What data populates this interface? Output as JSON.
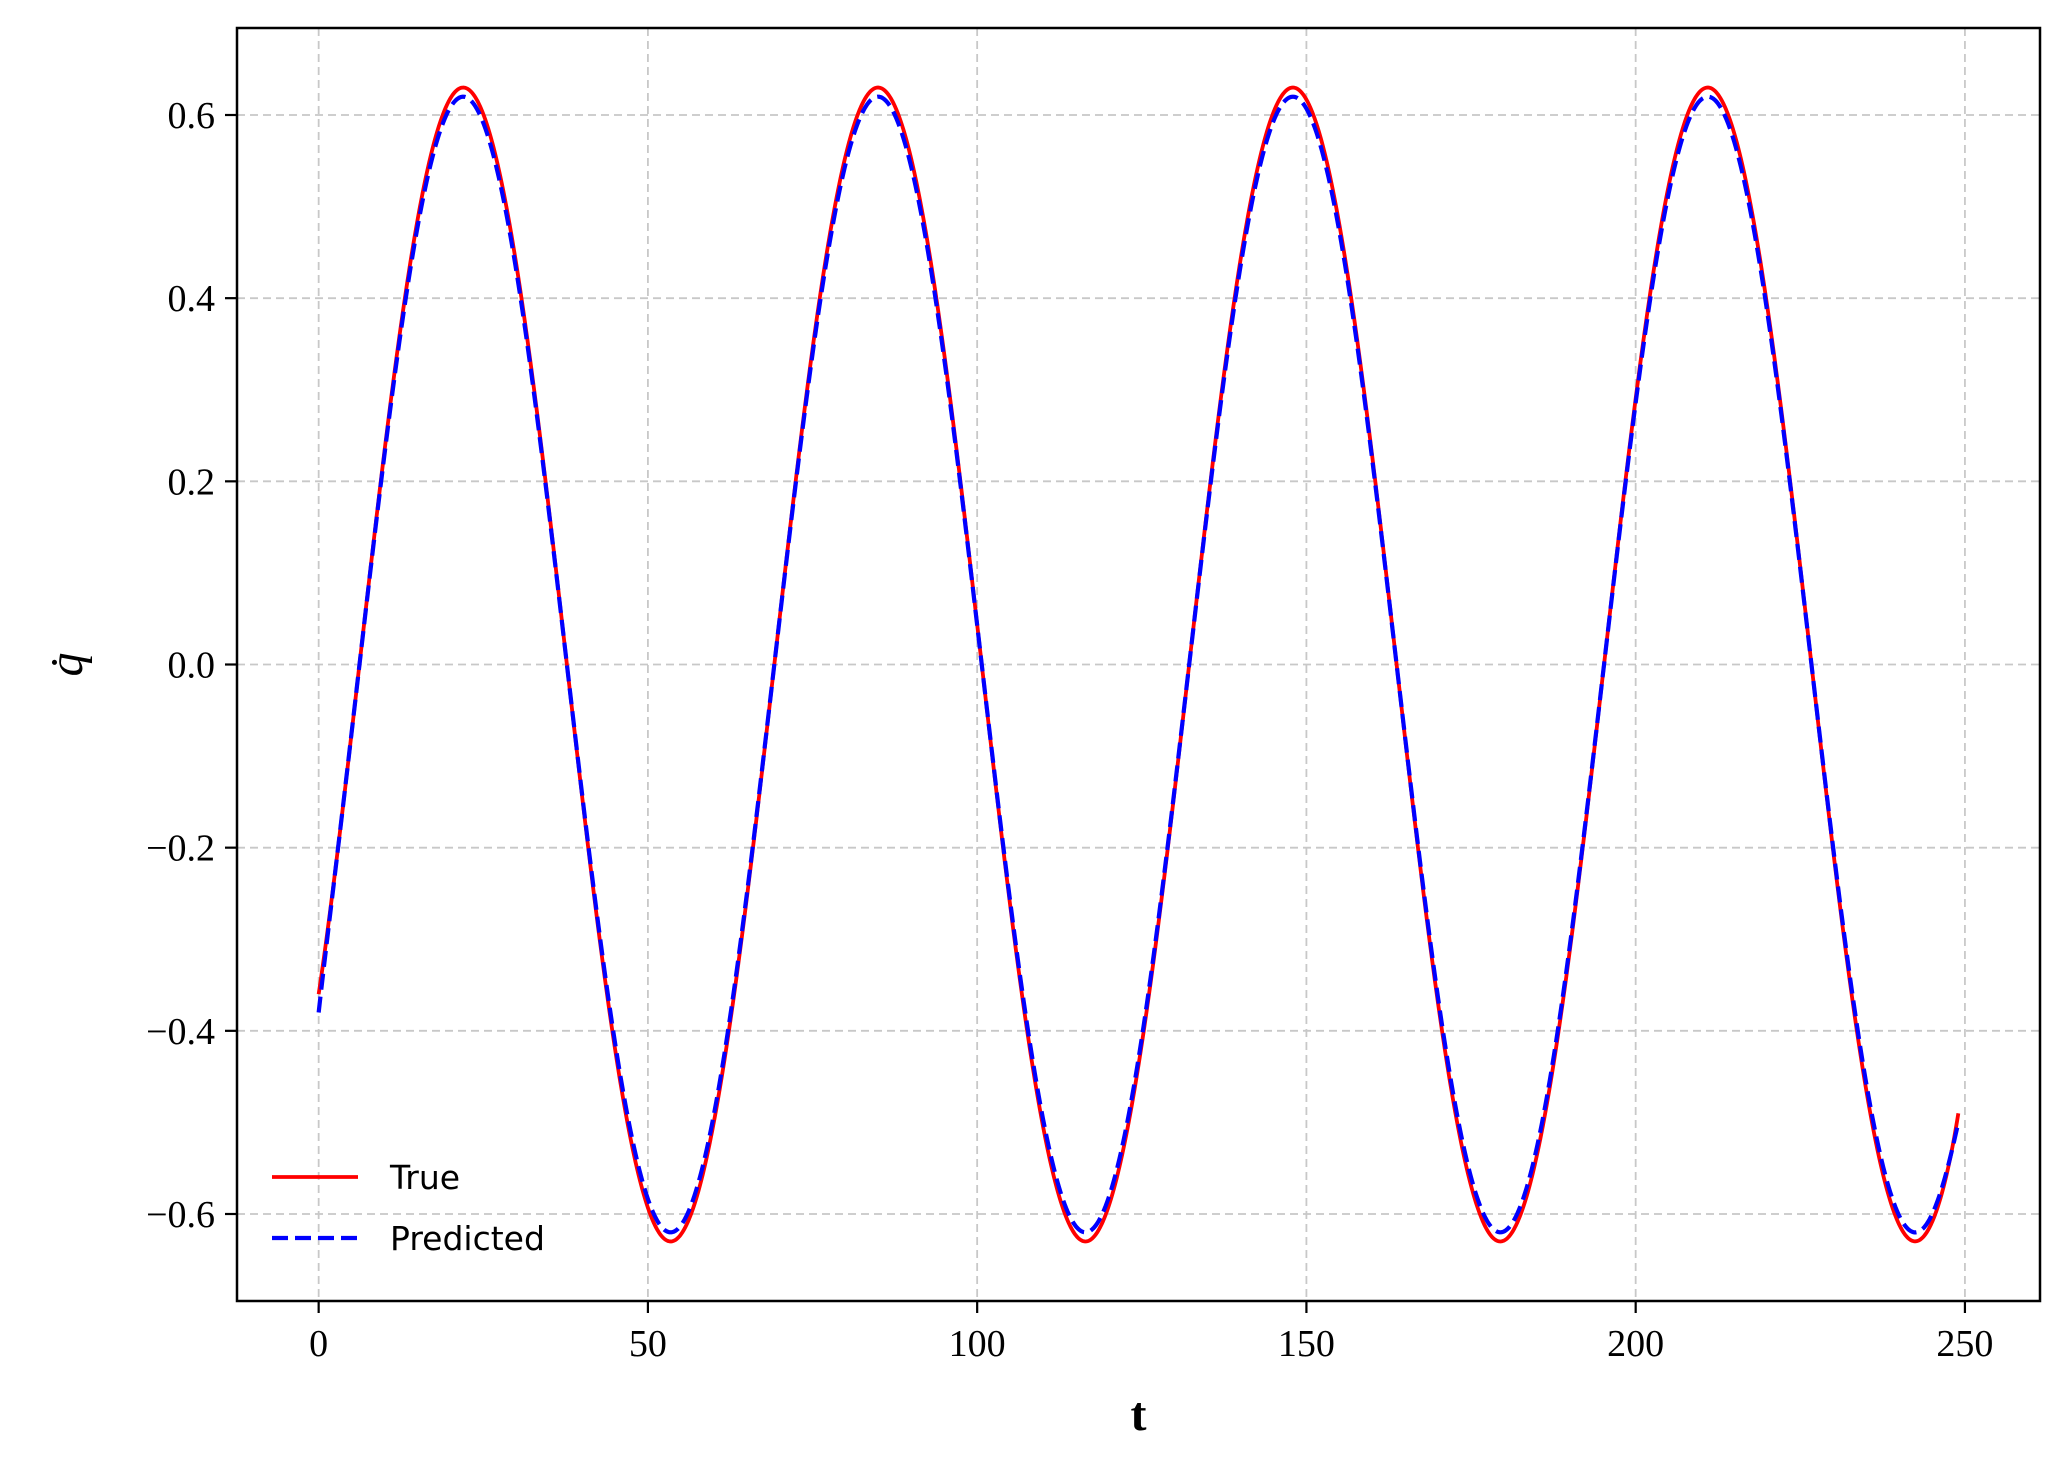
{
  "chart_data": {
    "type": "line",
    "title": "",
    "xlabel": "t",
    "ylabel": "q̇",
    "xlim": [
      -12.4,
      261.4
    ],
    "ylim": [
      -0.695,
      0.695
    ],
    "xticks": [
      0,
      50,
      100,
      150,
      200,
      250
    ],
    "yticks": [
      -0.6,
      -0.4,
      -0.2,
      0.0,
      0.2,
      0.4,
      0.6
    ],
    "xtick_labels": [
      "0",
      "50",
      "100",
      "150",
      "200",
      "250"
    ],
    "ytick_labels": [
      "−0.6",
      "−0.4",
      "−0.2",
      "0.0",
      "0.2",
      "0.4",
      "0.6"
    ],
    "grid": true,
    "legend": "lower-left",
    "x_range": [
      0,
      249
    ],
    "series": [
      {
        "name": "True",
        "color": "#ff0000",
        "style": "solid",
        "model": "sinusoid",
        "amplitude": 0.63,
        "period": 63,
        "phase": -0.618,
        "samples_x": [
          0,
          22,
          53.5,
          85,
          116.5,
          148,
          179.5,
          211,
          242.5,
          249
        ],
        "samples_y": [
          -0.36,
          0.63,
          -0.63,
          0.63,
          -0.63,
          0.63,
          -0.63,
          0.63,
          -0.63,
          -0.49
        ]
      },
      {
        "name": "Predicted",
        "color": "#0000ff",
        "style": "dashed",
        "model": "sinusoid",
        "amplitude": 0.62,
        "period": 63,
        "phase": -0.618,
        "samples_x": [
          0,
          22,
          53.5,
          85,
          116.5,
          148,
          179.5,
          211,
          242.5,
          249
        ],
        "samples_y": [
          -0.38,
          0.62,
          -0.62,
          0.62,
          -0.62,
          0.62,
          -0.62,
          0.62,
          -0.62,
          -0.5
        ]
      }
    ]
  }
}
